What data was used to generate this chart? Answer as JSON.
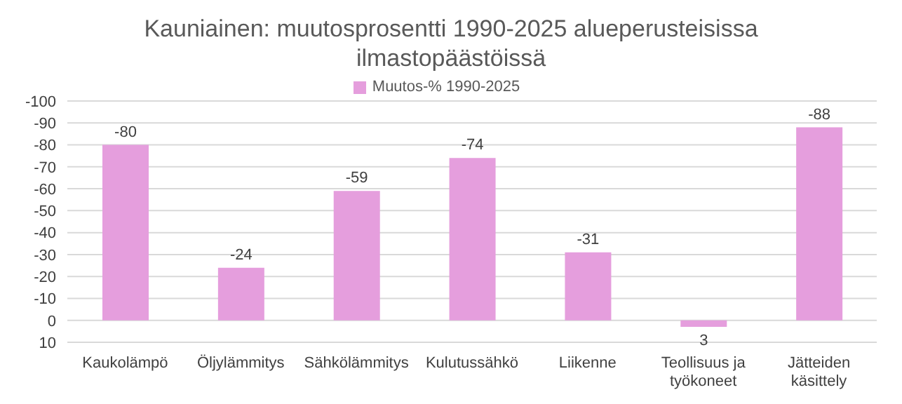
{
  "chart_data": {
    "type": "bar",
    "title": "Kauniainen: muutosprosentti 1990-2025 alueperusteisissa ilmastopäästöissä",
    "categories": [
      "Kaukolämpö",
      "Öljylämmitys",
      "Sähkölämmitys",
      "Kulutussähkö",
      "Liikenne",
      "Teollisuus ja työkoneet",
      "Jätteiden käsittely"
    ],
    "series": [
      {
        "name": "Muutos-% 1990-2025",
        "color": "#e59edd",
        "values": [
          -80,
          -24,
          -59,
          -74,
          -31,
          3,
          -88
        ]
      }
    ],
    "ylim": [
      10,
      -100
    ],
    "yticks": [
      10,
      0,
      -10,
      -20,
      -30,
      -40,
      -50,
      -60,
      -70,
      -80,
      -90,
      -100
    ],
    "grid": "y",
    "legend": "top",
    "data_labels": true
  }
}
